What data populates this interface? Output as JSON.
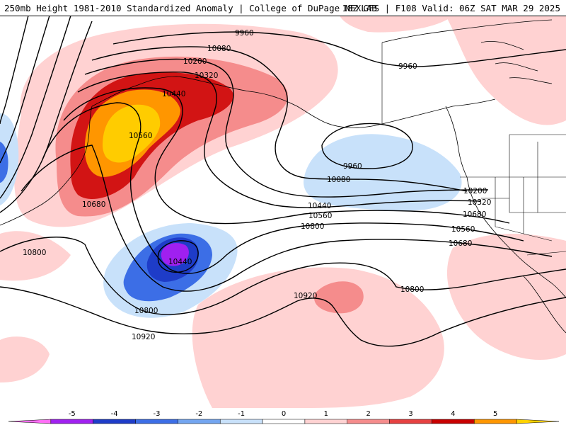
{
  "title": {
    "left": "250mb Height 1981-2010 Standardized Anomaly | College of DuPage NEXLAB",
    "right": "18Z GFS | F108 Valid: 06Z SAT MAR 29 2025"
  },
  "colorbar": {
    "ticks": [
      "-5",
      "-4",
      "-3",
      "-2",
      "-1",
      "0",
      "1",
      "2",
      "3",
      "4",
      "5"
    ],
    "colors": [
      "#ff6ef5",
      "#a020f0",
      "#1e3cc8",
      "#3c6ee6",
      "#73a5f0",
      "#c8e1fa",
      "#ffffff",
      "#ffd2d2",
      "#f58c8c",
      "#e64141",
      "#c80000",
      "#ff9600",
      "#ffd200"
    ]
  },
  "contour_labels": [
    "9960",
    "9960",
    "10080",
    "10200",
    "10320",
    "10440",
    "10560",
    "10680",
    "10800",
    "10440",
    "10800",
    "10920",
    "10920",
    "9960",
    "10080",
    "10200",
    "10320",
    "10440",
    "10560",
    "10680",
    "10800"
  ],
  "colors": {
    "pos1": "#ffd2d2",
    "pos2": "#f58c8c",
    "pos3": "#d21414",
    "pos4": "#ff9600",
    "pos5": "#ffcc00",
    "neg1": "#c8e1fa",
    "neg2": "#3c6ee6",
    "neg3": "#1e3cc8",
    "neg4": "#a020f0"
  }
}
